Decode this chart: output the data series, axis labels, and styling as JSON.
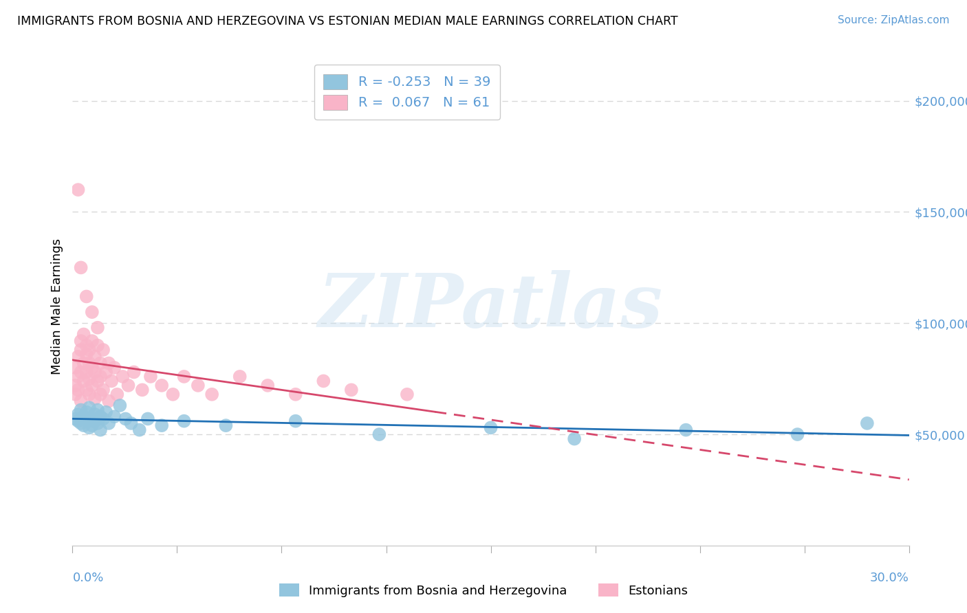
{
  "title": "IMMIGRANTS FROM BOSNIA AND HERZEGOVINA VS ESTONIAN MEDIAN MALE EARNINGS CORRELATION CHART",
  "source": "Source: ZipAtlas.com",
  "ylabel": "Median Male Earnings",
  "xmin": 0.0,
  "xmax": 0.3,
  "ymin": 0,
  "ymax": 215000,
  "yticks": [
    50000,
    100000,
    150000,
    200000
  ],
  "ytick_labels": [
    "$50,000",
    "$100,000",
    "$150,000",
    "$200,000"
  ],
  "blue_R": -0.253,
  "blue_N": 39,
  "blue_color": "#92c5de",
  "blue_line_color": "#2171b5",
  "pink_R": 0.067,
  "pink_N": 61,
  "pink_color": "#f9b4c8",
  "pink_line_color": "#d6476b",
  "blue_label": "Immigrants from Bosnia and Herzegovina",
  "pink_label": "Estonians",
  "watermark": "ZIPatlas",
  "background_color": "#ffffff",
  "grid_color": "#d8d8d8",
  "blue_x": [
    0.001,
    0.002,
    0.002,
    0.003,
    0.003,
    0.004,
    0.004,
    0.005,
    0.005,
    0.006,
    0.006,
    0.006,
    0.007,
    0.007,
    0.008,
    0.008,
    0.009,
    0.009,
    0.01,
    0.01,
    0.011,
    0.012,
    0.013,
    0.015,
    0.017,
    0.019,
    0.021,
    0.024,
    0.027,
    0.032,
    0.04,
    0.055,
    0.08,
    0.11,
    0.15,
    0.18,
    0.22,
    0.26,
    0.285
  ],
  "blue_y": [
    57000,
    59000,
    56000,
    61000,
    55000,
    58000,
    54000,
    57000,
    60000,
    56000,
    53000,
    62000,
    57000,
    54000,
    59000,
    56000,
    61000,
    55000,
    58000,
    52000,
    57000,
    60000,
    55000,
    58000,
    63000,
    57000,
    55000,
    52000,
    57000,
    54000,
    56000,
    54000,
    56000,
    50000,
    53000,
    48000,
    52000,
    50000,
    55000
  ],
  "pink_x": [
    0.001,
    0.001,
    0.001,
    0.002,
    0.002,
    0.002,
    0.003,
    0.003,
    0.003,
    0.003,
    0.004,
    0.004,
    0.004,
    0.005,
    0.005,
    0.005,
    0.005,
    0.006,
    0.006,
    0.006,
    0.006,
    0.007,
    0.007,
    0.007,
    0.008,
    0.008,
    0.008,
    0.009,
    0.009,
    0.01,
    0.01,
    0.01,
    0.011,
    0.011,
    0.012,
    0.013,
    0.013,
    0.014,
    0.015,
    0.016,
    0.018,
    0.02,
    0.022,
    0.025,
    0.028,
    0.032,
    0.036,
    0.04,
    0.045,
    0.05,
    0.06,
    0.07,
    0.08,
    0.09,
    0.1,
    0.12,
    0.002,
    0.003,
    0.005,
    0.007,
    0.009
  ],
  "pink_y": [
    72000,
    80000,
    68000,
    85000,
    76000,
    70000,
    88000,
    78000,
    65000,
    92000,
    82000,
    74000,
    95000,
    86000,
    70000,
    78000,
    90000,
    68000,
    82000,
    75000,
    88000,
    72000,
    80000,
    92000,
    78000,
    66000,
    85000,
    74000,
    90000,
    68000,
    82000,
    76000,
    70000,
    88000,
    78000,
    65000,
    82000,
    74000,
    80000,
    68000,
    76000,
    72000,
    78000,
    70000,
    76000,
    72000,
    68000,
    76000,
    72000,
    68000,
    76000,
    72000,
    68000,
    74000,
    70000,
    68000,
    160000,
    125000,
    112000,
    105000,
    98000
  ]
}
